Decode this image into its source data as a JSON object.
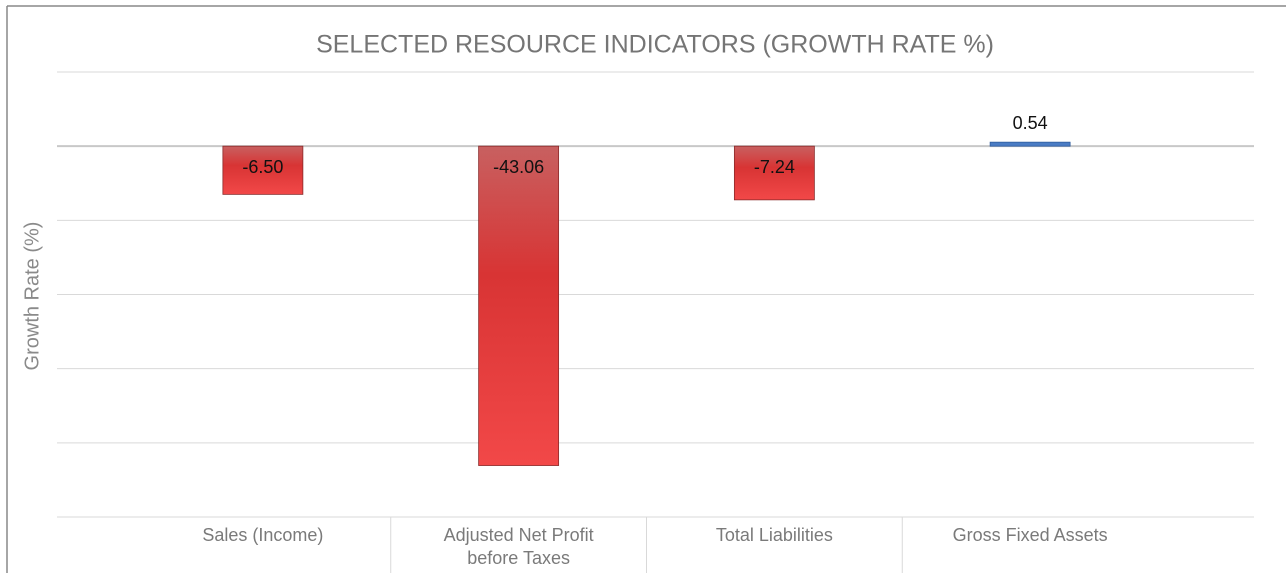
{
  "chart_data": {
    "type": "bar",
    "title": "SELECTED RESOURCE INDICATORS (GROWTH RATE %)",
    "y_label": "Growth Rate (%)",
    "categories": [
      "Sales (Income)",
      "Adjusted Net Profit before Taxes",
      "Total Liabilities",
      "Gross Fixed Assets"
    ],
    "values": [
      -6.5,
      -43.06,
      -7.24,
      0.54
    ],
    "value_labels": [
      "-6.50",
      "-43.06",
      "-7.24",
      "0.54"
    ],
    "colors": [
      "#e03c3c",
      "#e03c3c",
      "#e03c3c",
      "#4a7cc4"
    ],
    "ylim": [
      -50,
      10
    ],
    "yticks": [
      -50,
      -40,
      -30,
      -20,
      -10,
      0,
      10
    ],
    "grid": true
  }
}
